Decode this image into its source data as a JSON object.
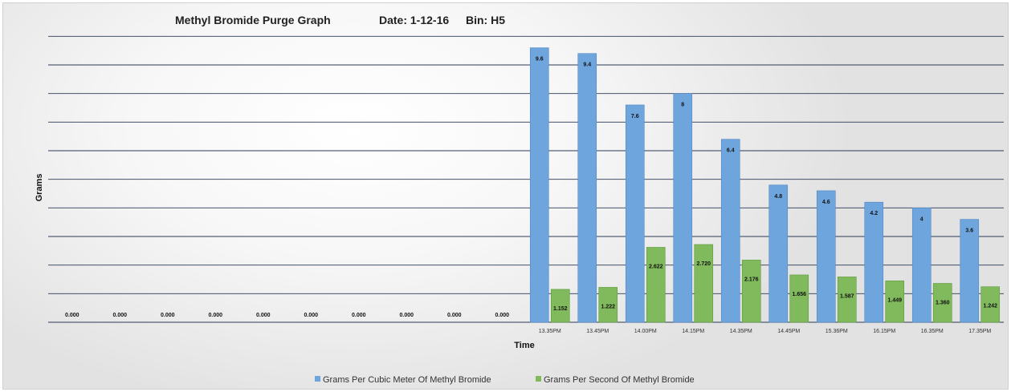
{
  "chart_data": {
    "type": "bar",
    "title": "Methyl Bromide Purge Graph",
    "date_label": "Date: 1-12-16",
    "bin_label": "Bin: H5",
    "xlabel": "Time",
    "ylabel": "Grams",
    "ylim": [
      0,
      10.5
    ],
    "categories": [
      "",
      "",
      "",
      "",
      "",
      "",
      "",
      "",
      "",
      "",
      "13.35PM",
      "13.45PM",
      "14.00PM",
      "14.15PM",
      "14.35PM",
      "14.45PM",
      "15.36PM",
      "16.15PM",
      "16.35PM",
      "17.35PM"
    ],
    "series": [
      {
        "name": "Grams Per Cubic Meter Of Methyl Bromide",
        "color": "#6fa5dd",
        "values": [
          null,
          null,
          null,
          null,
          null,
          null,
          null,
          null,
          null,
          null,
          9.6,
          9.4,
          7.6,
          8,
          6.4,
          4.8,
          4.6,
          4.2,
          4,
          3.6
        ],
        "labels": [
          "",
          "",
          "",
          "",
          "",
          "",
          "",
          "",
          "",
          "",
          "9.6",
          "9.4",
          "7.6",
          "8",
          "6.4",
          "4.8",
          "4.6",
          "4.2",
          "4",
          "3.6"
        ]
      },
      {
        "name": "Grams Per Second Of Methyl Bromide",
        "color": "#80ba5c",
        "values": [
          0,
          0,
          0,
          0,
          0,
          0,
          0,
          0,
          0,
          0,
          1.152,
          1.222,
          2.622,
          2.72,
          2.176,
          1.656,
          1.587,
          1.449,
          1.36,
          1.242
        ],
        "labels": [
          "0.000",
          "0.000",
          "0.000",
          "0.000",
          "0.000",
          "0.000",
          "0.000",
          "0.000",
          "0.000",
          "0.000",
          "1.152",
          "1.222",
          "2.622",
          "2.720",
          "2.176",
          "1.656",
          "1.587",
          "1.449",
          "1.360",
          "1.242"
        ]
      }
    ],
    "grid": true,
    "legend": "bottom"
  }
}
